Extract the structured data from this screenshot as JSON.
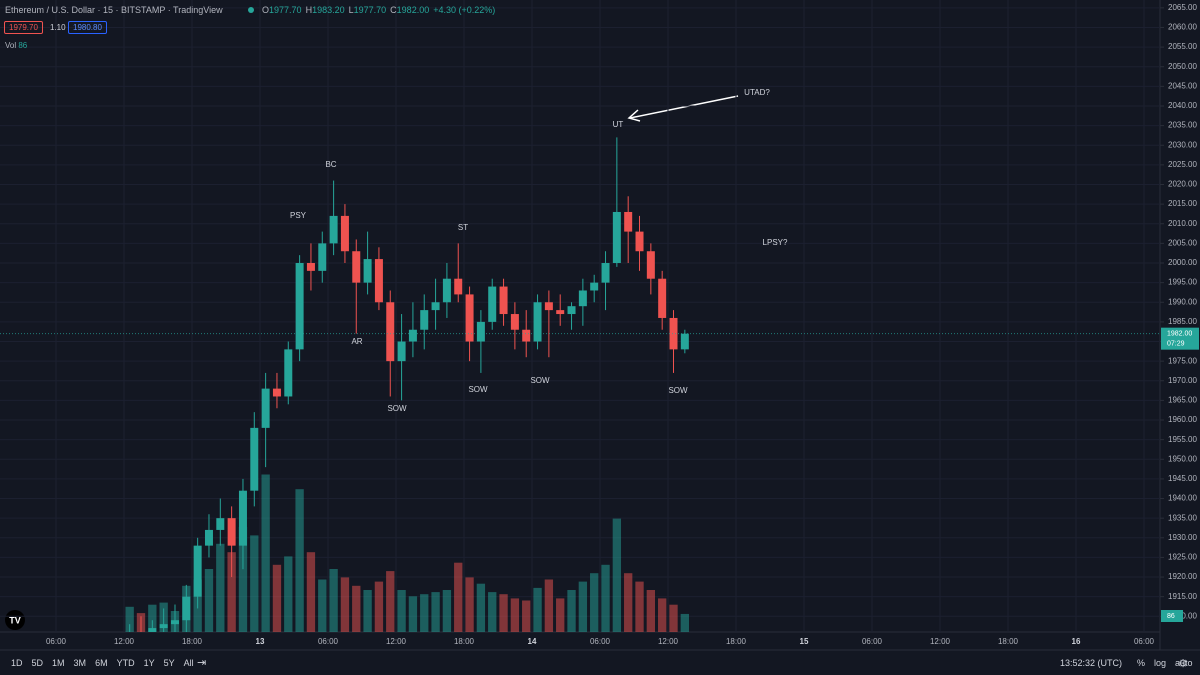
{
  "ui": {
    "symbol": "Ethereum / U.S. Dollar · 15 · BITSTAMP · TradingView",
    "ohlc": [
      {
        "key": "O",
        "value": "1977.70"
      },
      {
        "key": "H",
        "value": "1983.20"
      },
      {
        "key": "L",
        "value": "1977.70"
      },
      {
        "key": "C",
        "value": "1982.00"
      }
    ],
    "change": "+4.30 (+0.22%)",
    "bid": "1979.70",
    "spread": "1.10",
    "ask": "1980.80",
    "volume_label": "Vol",
    "ranges": [
      "1D",
      "5D",
      "1M",
      "3M",
      "6M",
      "YTD",
      "1Y",
      "5Y",
      "All"
    ],
    "clock": "13:52:32 (UTC)",
    "axis_buttons": [
      "%",
      "log",
      "auto"
    ]
  },
  "chart_data": {
    "type": "candlestick",
    "up_color": "#26a69a",
    "down_color": "#ef5350",
    "open": [
      1904,
      1906,
      1905,
      1907,
      1908,
      1909,
      1915,
      1928,
      1932,
      1935,
      1928,
      1942,
      1958,
      1968,
      1966,
      1978,
      2000,
      1998,
      2005,
      2012,
      2003,
      1995,
      2001,
      1990,
      1975,
      1980,
      1983,
      1988,
      1990,
      1996,
      1992,
      1980,
      1985,
      1994,
      1987,
      1983,
      1980,
      1990,
      1988,
      1987,
      1989,
      1993,
      1995,
      2000,
      2013,
      2008,
      2003,
      1996,
      1986,
      1978
    ],
    "high": [
      1908,
      1910,
      1909,
      1912,
      1913,
      1918,
      1930,
      1936,
      1940,
      1938,
      1945,
      1962,
      1972,
      1972,
      1980,
      2002,
      2005,
      2008,
      2021,
      2015,
      2006,
      2008,
      2004,
      1993,
      1987,
      1990,
      1992,
      1996,
      2000,
      2005,
      1994,
      1988,
      1996,
      1996,
      1990,
      1988,
      1992,
      1993,
      1992,
      1990,
      1996,
      1997,
      2003,
      2032,
      2017,
      2012,
      2005,
      1998,
      1988,
      1983
    ],
    "low": [
      1900,
      1902,
      1901,
      1903,
      1904,
      1906,
      1912,
      1925,
      1928,
      1920,
      1922,
      1938,
      1948,
      1963,
      1964,
      1975,
      1993,
      1995,
      2002,
      2000,
      1982,
      1992,
      1988,
      1966,
      1965,
      1976,
      1978,
      1983,
      1986,
      1990,
      1975,
      1972,
      1983,
      1984,
      1978,
      1976,
      1978,
      1976,
      1984,
      1983,
      1984,
      1990,
      1988,
      1999,
      2000,
      1998,
      1992,
      1983,
      1972,
      1977
    ],
    "close": [
      1906,
      1905,
      1907,
      1908,
      1909,
      1915,
      1928,
      1932,
      1935,
      1928,
      1942,
      1958,
      1968,
      1966,
      1978,
      2000,
      1998,
      2005,
      2012,
      2003,
      1995,
      2001,
      1990,
      1975,
      1980,
      1983,
      1988,
      1990,
      1996,
      1992,
      1980,
      1985,
      1994,
      1987,
      1983,
      1980,
      1990,
      1988,
      1987,
      1989,
      1993,
      1995,
      2000,
      2013,
      2008,
      2003,
      1996,
      1986,
      1978,
      1982
    ],
    "volume": [
      120,
      90,
      130,
      140,
      100,
      220,
      250,
      300,
      420,
      380,
      500,
      460,
      750,
      320,
      360,
      680,
      380,
      250,
      300,
      260,
      220,
      200,
      240,
      290,
      200,
      170,
      180,
      190,
      200,
      330,
      260,
      230,
      190,
      180,
      160,
      150,
      210,
      250,
      160,
      200,
      240,
      280,
      320,
      540,
      280,
      240,
      200,
      160,
      130,
      86
    ],
    "ylim": [
      1906,
      2067
    ],
    "yticks": [
      {
        "value": 2065,
        "label": "2065.00"
      },
      {
        "value": 2060,
        "label": "2060.00"
      },
      {
        "value": 2055,
        "label": "2055.00"
      },
      {
        "value": 2050,
        "label": "2050.00"
      },
      {
        "value": 2045,
        "label": "2045.00"
      },
      {
        "value": 2040,
        "label": "2040.00"
      },
      {
        "value": 2035,
        "label": "2035.00"
      },
      {
        "value": 2030,
        "label": "2030.00"
      },
      {
        "value": 2025,
        "label": "2025.00"
      },
      {
        "value": 2020,
        "label": "2020.00"
      },
      {
        "value": 2015,
        "label": "2015.00"
      },
      {
        "value": 2010,
        "label": "2010.00"
      },
      {
        "value": 2005,
        "label": "2005.00"
      },
      {
        "value": 2000,
        "label": "2000.00"
      },
      {
        "value": 1995,
        "label": "1995.00"
      },
      {
        "value": 1990,
        "label": "1990.00"
      },
      {
        "value": 1985,
        "label": "1985.00"
      },
      {
        "value": 1980,
        "label": "1980.00"
      },
      {
        "value": 1975,
        "label": "1975.00"
      },
      {
        "value": 1970,
        "label": "1970.00"
      },
      {
        "value": 1965,
        "label": "1965.00"
      },
      {
        "value": 1960,
        "label": "1960.00"
      },
      {
        "value": 1955,
        "label": "1955.00"
      },
      {
        "value": 1950,
        "label": "1950.00"
      },
      {
        "value": 1945,
        "label": "1945.00"
      },
      {
        "value": 1940,
        "label": "1940.00"
      },
      {
        "value": 1935,
        "label": "1935.00"
      },
      {
        "value": 1930,
        "label": "1930.00"
      },
      {
        "value": 1925,
        "label": "1925.00"
      },
      {
        "value": 1920,
        "label": "1920.00"
      },
      {
        "value": 1915,
        "label": "1915.00"
      },
      {
        "value": 1910,
        "label": "1910.00"
      }
    ],
    "current_price": {
      "value": 1982,
      "label": "1982.00"
    },
    "countdown": "07:29",
    "time_labels": [
      "06:00",
      "12:00",
      "18:00",
      "13",
      "06:00",
      "12:00",
      "18:00",
      "14",
      "06:00",
      "12:00",
      "18:00",
      "15",
      "06:00",
      "12:00",
      "18:00",
      "16",
      "06:00"
    ],
    "annotations": [
      "PSY",
      "BC",
      "AR",
      "SOW",
      "ST",
      "SOW",
      "SOW",
      "UT",
      "UTAD?",
      "LPSY?",
      "SOW"
    ]
  }
}
